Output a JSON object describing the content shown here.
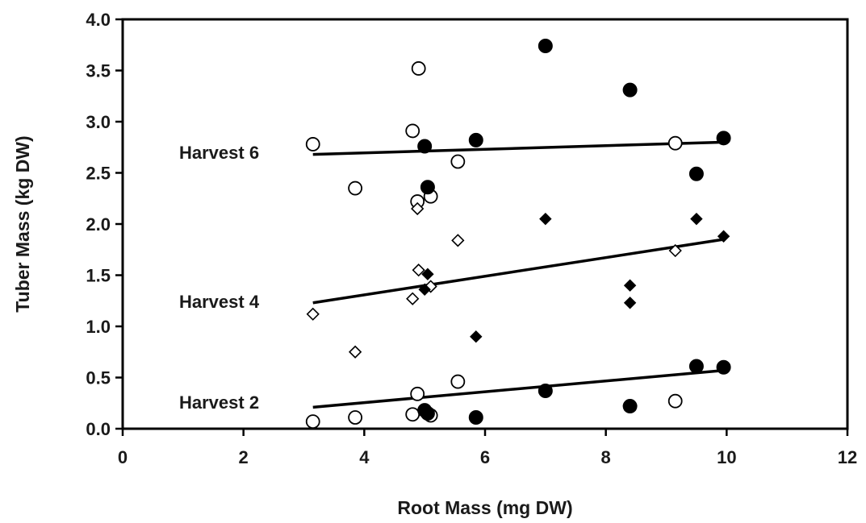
{
  "chart_data": {
    "type": "scatter",
    "title": "",
    "xlabel": "Root Mass (mg DW)",
    "ylabel": "Tuber Mass (kg DW)",
    "xlim": [
      0,
      12
    ],
    "ylim": [
      0,
      4.0
    ],
    "xticks": [
      "0",
      "2",
      "4",
      "6",
      "8",
      "10",
      "12"
    ],
    "yticks": [
      "0.0",
      "0.5",
      "1.0",
      "1.5",
      "2.0",
      "2.5",
      "3.0",
      "3.5",
      "4.0"
    ],
    "grid": false,
    "legend": "none",
    "groups": [
      {
        "label": "Harvest 6",
        "trend": {
          "x": [
            3.15,
            9.95
          ],
          "y": [
            2.68,
            2.8
          ]
        },
        "series": [
          {
            "marker": "open-circle",
            "x": [
              3.15,
              3.85,
              4.8,
              4.88,
              4.9,
              5.1,
              5.55,
              9.15
            ],
            "y": [
              2.78,
              2.35,
              2.91,
              2.22,
              3.52,
              2.27,
              2.61,
              2.79
            ]
          },
          {
            "marker": "filled-circle",
            "x": [
              5.0,
              5.05,
              5.85,
              7.0,
              8.4,
              9.5,
              9.95
            ],
            "y": [
              2.76,
              2.36,
              2.82,
              3.74,
              3.31,
              2.49,
              2.84
            ]
          }
        ]
      },
      {
        "label": "Harvest 4",
        "trend": {
          "x": [
            3.15,
            9.95
          ],
          "y": [
            1.23,
            1.85
          ]
        },
        "series": [
          {
            "marker": "open-diamond",
            "x": [
              3.15,
              3.85,
              4.8,
              4.88,
              4.9,
              5.1,
              5.55,
              9.15
            ],
            "y": [
              1.12,
              0.75,
              1.27,
              2.15,
              1.55,
              1.39,
              1.84,
              1.74
            ]
          },
          {
            "marker": "filled-diamond",
            "x": [
              5.0,
              5.05,
              5.85,
              7.0,
              8.4,
              8.4,
              9.5,
              9.95
            ],
            "y": [
              1.36,
              1.51,
              0.9,
              2.05,
              1.4,
              1.23,
              2.05,
              1.88
            ]
          }
        ]
      },
      {
        "label": "Harvest 2",
        "trend": {
          "x": [
            3.15,
            9.95
          ],
          "y": [
            0.21,
            0.57
          ]
        },
        "series": [
          {
            "marker": "open-circle",
            "x": [
              3.15,
              3.85,
              4.8,
              4.88,
              5.1,
              5.55,
              9.15
            ],
            "y": [
              0.07,
              0.11,
              0.14,
              0.34,
              0.13,
              0.46,
              0.27
            ]
          },
          {
            "marker": "filled-circle",
            "x": [
              5.0,
              5.05,
              5.85,
              7.0,
              8.4,
              9.5,
              9.95
            ],
            "y": [
              0.18,
              0.15,
              0.11,
              0.37,
              0.22,
              0.61,
              0.6
            ]
          }
        ]
      }
    ],
    "colors": {
      "ink": "#000000",
      "open_fill": "#ffffff"
    }
  }
}
